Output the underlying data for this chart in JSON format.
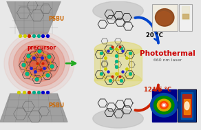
{
  "bg_color": "#e8e8e8",
  "left_panel": {
    "psbu_top_color": "#888888",
    "psbu_bottom_color": "#888888",
    "precursor_glow_color": "#dd2200",
    "precursor_label": "precursor",
    "precursor_label_color": "#cc0000",
    "psbu_label": "PSBU",
    "psbu_label_color": "#cc6600",
    "arrow_color": "#22aa22"
  },
  "right_panel": {
    "photothermal_label": "Photothermal",
    "photothermal_color": "#cc0000",
    "laser_label": "660 nm laser",
    "laser_color": "#555555",
    "temp_top": "20 °C",
    "temp_bottom": "124.5 °C",
    "temp_color_top": "#000000",
    "temp_color_bottom": "#cc2200"
  },
  "center_cylinder_color": "#e0d870",
  "molecule_color": "#404040",
  "cu_atom_color": "#00aa88",
  "s_atom_color": "#cccc00",
  "n_atom_color": "#0000cc",
  "o_atom_color": "#cc2200"
}
